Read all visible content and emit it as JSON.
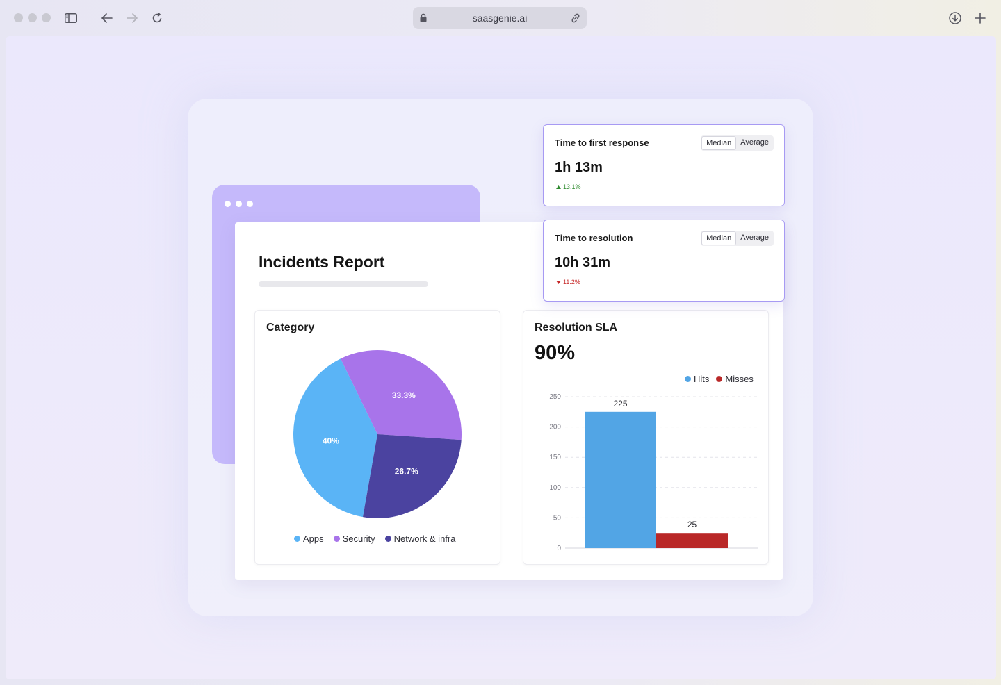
{
  "browser": {
    "url": "saasgenie.ai"
  },
  "report": {
    "title": "Incidents Report"
  },
  "category_panel": {
    "title": "Category",
    "legend": [
      {
        "label": "Apps",
        "color": "#5ab4f6"
      },
      {
        "label": "Security",
        "color": "#a874ea"
      },
      {
        "label": "Network & infra",
        "color": "#4b43a0"
      }
    ]
  },
  "sla_panel": {
    "title": "Resolution SLA",
    "value": "90%",
    "legend": [
      {
        "label": "Hits",
        "color": "#52a5e5"
      },
      {
        "label": "Misses",
        "color": "#b92828"
      }
    ]
  },
  "metrics": [
    {
      "title": "Time to first response",
      "value": "1h 13m",
      "change": "13.1%",
      "direction": "up",
      "change_color": "#2e8a2e",
      "toggle": [
        "Median",
        "Average"
      ],
      "selected": "Median"
    },
    {
      "title": "Time to resolution",
      "value": "10h 31m",
      "change": "11.2%",
      "direction": "down",
      "change_color": "#c62828",
      "toggle": [
        "Median",
        "Average"
      ],
      "selected": "Median"
    }
  ],
  "chart_data": [
    {
      "type": "pie",
      "title": "Category",
      "slices": [
        {
          "label": "Apps",
          "value": 40,
          "display": "40%",
          "color": "#5ab4f6"
        },
        {
          "label": "Security",
          "value": 33.3,
          "display": "33.3%",
          "color": "#a874ea"
        },
        {
          "label": "Network & infra",
          "value": 26.7,
          "display": "26.7%",
          "color": "#4b43a0"
        }
      ]
    },
    {
      "type": "bar",
      "title": "Resolution SLA",
      "categories": [
        "Hits",
        "Misses"
      ],
      "values": [
        225,
        25
      ],
      "colors": [
        "#52a5e5",
        "#b92828"
      ],
      "ylim": [
        0,
        250
      ],
      "yticks": [
        0,
        50,
        100,
        150,
        200,
        250
      ],
      "grid": true,
      "legend": "top-right"
    }
  ]
}
